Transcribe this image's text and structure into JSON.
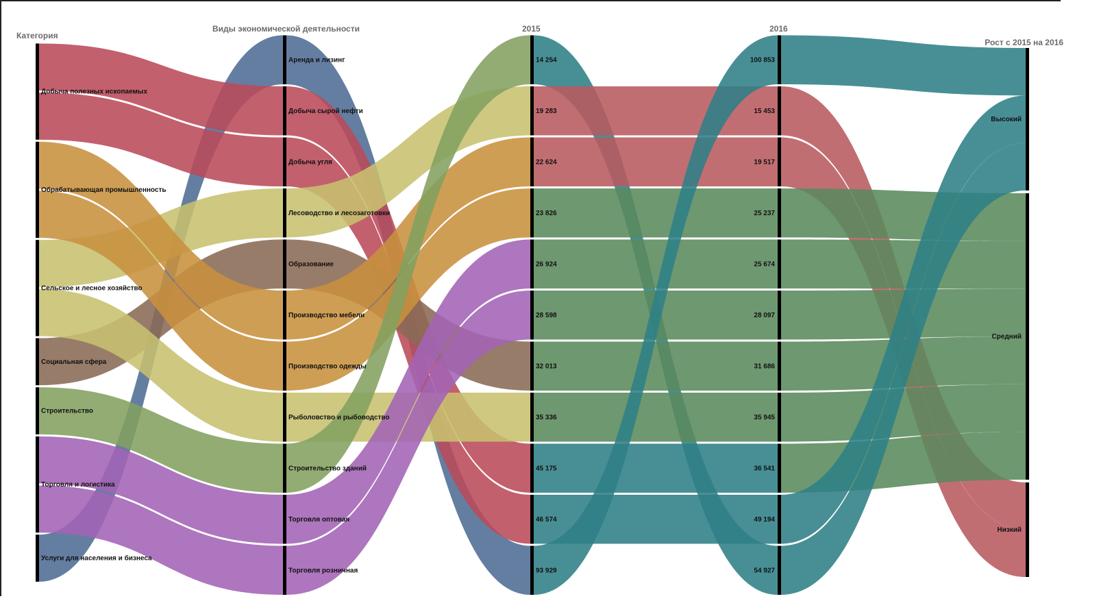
{
  "headers": {
    "category": "Категория",
    "activity": "Виды экономической деятельности",
    "y2015": "2015",
    "y2016": "2016",
    "growth": "Рост с 2015 на 2016"
  },
  "chart_data": {
    "type": "alluvial",
    "axes": [
      "Категория",
      "Виды экономической деятельности",
      "2015",
      "2016",
      "Рост с 2015 на 2016"
    ],
    "categories": [
      "Добыча полезных ископаемых",
      "Обрабатывающая промышленность",
      "Сельское и лесное хозяйство",
      "Социальная сфера",
      "Строительство",
      "Торговля и логистика",
      "Услуги для населения и бизнеса"
    ],
    "category_colors": [
      "#bb4a5a",
      "#c8913e",
      "#c7c06f",
      "#8a6a55",
      "#83a060",
      "#a363b5",
      "#4e6c94"
    ],
    "rows": [
      {
        "activity": "Аренда и лизинг",
        "category": 6,
        "v2015": "14 254",
        "v2016": "100 853",
        "growth": "Высокий"
      },
      {
        "activity": "Добыча сырой нефти",
        "category": 0,
        "v2015": "19 283",
        "v2016": "15 453",
        "growth": "Низкий"
      },
      {
        "activity": "Добыча угля",
        "category": 0,
        "v2015": "22 624",
        "v2016": "19 517",
        "growth": "Низкий"
      },
      {
        "activity": "Лесоводство и лесозаготовки",
        "category": 2,
        "v2015": "23 826",
        "v2016": "25 237",
        "growth": "Средний"
      },
      {
        "activity": "Образование",
        "category": 3,
        "v2015": "26 924",
        "v2016": "25 674",
        "growth": "Средний"
      },
      {
        "activity": "Производство мебели",
        "category": 1,
        "v2015": "28 598",
        "v2016": "28 097",
        "growth": "Средний"
      },
      {
        "activity": "Производство одежды",
        "category": 1,
        "v2015": "32 013",
        "v2016": "31 686",
        "growth": "Средний"
      },
      {
        "activity": "Рыболовство и рыбоводство",
        "category": 2,
        "v2015": "35 336",
        "v2016": "35 945",
        "growth": "Средний"
      },
      {
        "activity": "Строительство зданий",
        "category": 4,
        "v2015": "45 175",
        "v2016": "36 541",
        "growth": "Средний"
      },
      {
        "activity": "Торговля оптовая",
        "category": 5,
        "v2015": "46 574",
        "v2016": "49 194",
        "growth": "Высокий"
      },
      {
        "activity": "Торговля розничная",
        "category": 5,
        "v2015": "93 929",
        "v2016": "54 927",
        "growth": "Высокий"
      }
    ],
    "links_2015_to_2016": [
      [
        0,
        10
      ],
      [
        1,
        1
      ],
      [
        2,
        2
      ],
      [
        3,
        3
      ],
      [
        4,
        4
      ],
      [
        5,
        5
      ],
      [
        6,
        6
      ],
      [
        7,
        7
      ],
      [
        8,
        8
      ],
      [
        9,
        9
      ],
      [
        10,
        0
      ]
    ],
    "link_color_2015_2016": [
      0,
      0,
      0,
      2,
      3,
      1,
      1,
      2,
      4,
      5,
      5
    ],
    "growth_levels": [
      "Высокий",
      "Средний",
      "Низкий"
    ]
  }
}
